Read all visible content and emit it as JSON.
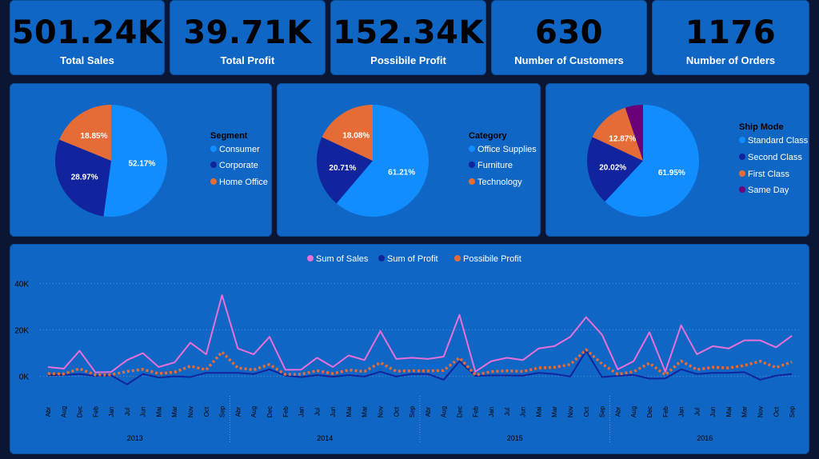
{
  "kpis": [
    {
      "value": "501.24K",
      "label": "Total Sales"
    },
    {
      "value": "39.71K",
      "label": "Total Profit"
    },
    {
      "value": "152.34K",
      "label": "Possibile Profit"
    },
    {
      "value": "630",
      "label": "Number of Customers"
    },
    {
      "value": "1176",
      "label": "Number of Orders"
    }
  ],
  "colors": {
    "light_blue": "#118dff",
    "dark_blue": "#12239e",
    "orange": "#e66c37",
    "purple": "#6b007b",
    "pink": "#e86fd8",
    "card_bg": "#0f66c4"
  },
  "chart_data": [
    {
      "type": "pie",
      "legend_title": "Segment",
      "labels": [
        "Consumer",
        "Corporate",
        "Home Office"
      ],
      "values": [
        52.17,
        28.97,
        18.85
      ],
      "data_labels": [
        "52.17%",
        "28.97%",
        "18.85%"
      ],
      "colors": [
        "#118dff",
        "#12239e",
        "#e66c37"
      ],
      "legend": "right"
    },
    {
      "type": "pie",
      "legend_title": "Category",
      "labels": [
        "Office Supplies",
        "Furniture",
        "Technology"
      ],
      "values": [
        61.21,
        20.71,
        18.08
      ],
      "data_labels": [
        "61.21%",
        "20.71%",
        "18.08%"
      ],
      "colors": [
        "#118dff",
        "#12239e",
        "#e66c37"
      ],
      "legend": "right"
    },
    {
      "type": "pie",
      "legend_title": "Ship Mode",
      "labels": [
        "Standard Class",
        "Second Class",
        "First Class",
        "Same Day"
      ],
      "values": [
        61.95,
        20.02,
        12.87,
        5.16
      ],
      "data_labels": [
        "61.95%",
        "20.02%",
        "12.87%",
        ""
      ],
      "colors": [
        "#118dff",
        "#12239e",
        "#e66c37",
        "#6b007b"
      ],
      "legend": "right"
    },
    {
      "type": "line",
      "title": "",
      "xlabel": "",
      "ylabel": "",
      "yticks": [
        "0K",
        "20K",
        "40K"
      ],
      "ytick_values": [
        0,
        20000,
        40000
      ],
      "ylim": [
        -6000,
        44000
      ],
      "grid": true,
      "legend": "top-center",
      "x": [
        "Abr",
        "Aug",
        "Dec",
        "Feb",
        "Jan",
        "Jul",
        "Jun",
        "Mai",
        "Mar",
        "Nov",
        "Oct",
        "Sep",
        "Abr",
        "Aug",
        "Dec",
        "Feb",
        "Jan",
        "Jul",
        "Jun",
        "Mai",
        "Mar",
        "Nov",
        "Oct",
        "Sep",
        "Abr",
        "Aug",
        "Dec",
        "Feb",
        "Jan",
        "Jul",
        "Jun",
        "Mai",
        "Mar",
        "Nov",
        "Oct",
        "Sep",
        "Abr",
        "Aug",
        "Dec",
        "Feb",
        "Jan",
        "Jul",
        "Jun",
        "Mai",
        "Mar",
        "Nov",
        "Oct",
        "Sep"
      ],
      "years": [
        "2013",
        "2014",
        "2015",
        "2016"
      ],
      "series": [
        {
          "name": "Sum of Sales",
          "color": "#e86fd8",
          "style": "solid",
          "values": [
            4000,
            3300,
            11000,
            1700,
            1900,
            7000,
            10000,
            4000,
            6000,
            14500,
            9500,
            35000,
            12000,
            9500,
            17000,
            2800,
            2900,
            8000,
            4000,
            9000,
            7000,
            19500,
            7500,
            8000,
            7500,
            8500,
            26500,
            2000,
            6500,
            8000,
            7000,
            12000,
            13000,
            17000,
            25500,
            18000,
            3000,
            6500,
            19000,
            2000,
            22000,
            9500,
            13000,
            12000,
            15500,
            15500,
            12500,
            17500
          ]
        },
        {
          "name": "Sum of Profit",
          "color": "#12239e",
          "style": "solid",
          "values": [
            500,
            600,
            1000,
            200,
            400,
            -3500,
            1000,
            -500,
            0,
            -300,
            1500,
            1500,
            1500,
            1000,
            3000,
            300,
            -300,
            500,
            -200,
            500,
            -100,
            2000,
            -100,
            1000,
            1000,
            -1500,
            6500,
            200,
            400,
            400,
            300,
            1500,
            1000,
            -100,
            11000,
            -300,
            200,
            600,
            -1000,
            -900,
            3000,
            1000,
            1500,
            1500,
            1800,
            -1500,
            300,
            1000
          ]
        },
        {
          "name": "Possibile Profit",
          "color": "#e66c37",
          "style": "dotted",
          "values": [
            1200,
            1000,
            3300,
            600,
            700,
            2100,
            3000,
            1200,
            1800,
            4400,
            2800,
            10500,
            3600,
            2800,
            5100,
            800,
            900,
            2400,
            1200,
            2700,
            2100,
            5900,
            2200,
            2400,
            2300,
            2500,
            8000,
            600,
            2000,
            2400,
            2100,
            3600,
            3900,
            5100,
            11500,
            5400,
            900,
            2000,
            5700,
            600,
            6600,
            2900,
            3900,
            3600,
            4700,
            6500,
            3800,
            6200
          ]
        }
      ]
    }
  ]
}
